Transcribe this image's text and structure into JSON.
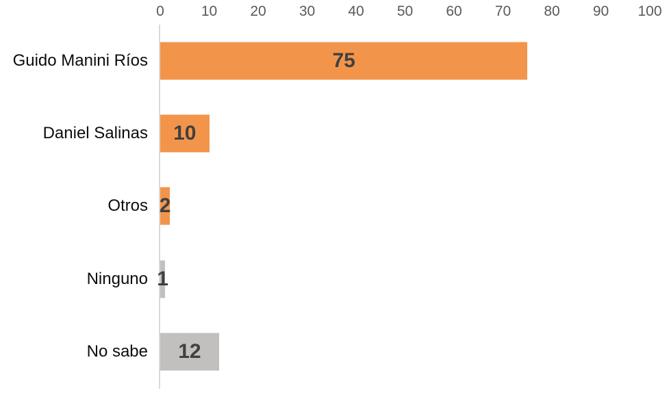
{
  "chart_data": {
    "type": "bar",
    "orientation": "horizontal",
    "title": "",
    "xlabel": "",
    "ylabel": "",
    "categories": [
      "Guido Manini Ríos",
      "Daniel Salinas",
      "Otros",
      "Ninguno",
      "No sabe"
    ],
    "values": [
      75,
      10,
      2,
      1,
      12
    ],
    "data_labels": [
      "75",
      "10",
      "2",
      "1",
      "12"
    ],
    "bar_colors": [
      "#F2954B",
      "#F2954B",
      "#F2954B",
      "#C1C0BF",
      "#C1C0BF"
    ],
    "xlim": [
      0,
      100
    ],
    "x_ticks": [
      0,
      10,
      20,
      30,
      40,
      50,
      60,
      70,
      80,
      90,
      100
    ],
    "x_axis_position": "top",
    "grid": false,
    "legend": false,
    "colors": {
      "orange_series": "#F2954B",
      "gray_series": "#C1C0BF",
      "axis_line": "#D9D9D9",
      "tick_label": "#595959",
      "category_label": "#0D0D0D",
      "value_label": "#404040",
      "background": "#FFFFFF"
    }
  }
}
